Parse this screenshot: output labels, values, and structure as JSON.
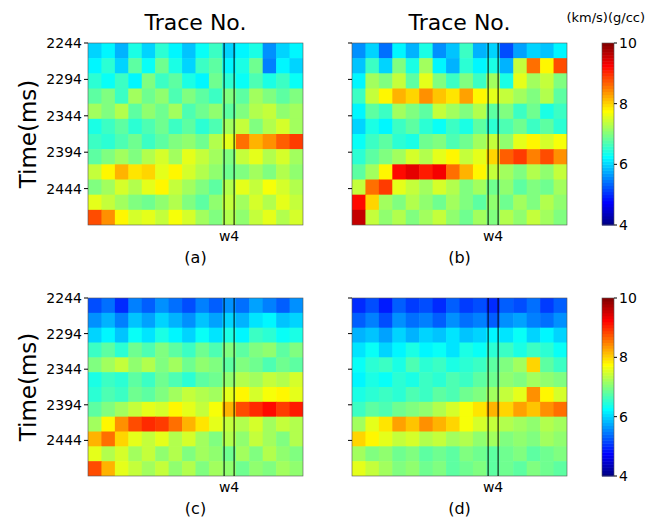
{
  "chart_data": [
    {
      "type": "heatmap",
      "label": "(a)",
      "title": "Trace No.",
      "y_label": "Time(ms)",
      "xlim": [
        0,
        16
      ],
      "xticks": [
        {
          "value": 10.5,
          "label": "w4"
        }
      ],
      "ylim": [
        2244,
        2494
      ],
      "yticks": [
        2244,
        2294,
        2344,
        2394,
        2444
      ],
      "cells": [
        [
          6.0,
          6.2,
          5.8,
          6.4,
          6.0,
          6.5,
          6.2,
          5.9,
          6.3,
          6.6,
          6.0,
          6.2,
          6.4,
          5.6,
          6.0,
          6.2
        ],
        [
          6.2,
          6.5,
          6.0,
          6.8,
          6.3,
          6.9,
          6.4,
          6.0,
          6.6,
          6.8,
          6.2,
          6.4,
          6.9,
          5.5,
          6.2,
          6.0
        ],
        [
          6.5,
          6.3,
          6.6,
          6.2,
          7.0,
          6.6,
          6.8,
          6.4,
          6.2,
          6.9,
          6.5,
          6.3,
          6.7,
          6.4,
          6.6,
          6.3
        ],
        [
          6.8,
          7.0,
          6.6,
          7.2,
          6.9,
          7.1,
          6.7,
          7.0,
          6.8,
          6.6,
          7.0,
          6.8,
          7.2,
          7.0,
          6.8,
          7.0
        ],
        [
          7.2,
          7.0,
          7.3,
          6.8,
          7.1,
          6.9,
          7.2,
          6.7,
          6.9,
          7.1,
          6.8,
          7.0,
          7.3,
          7.4,
          7.1,
          7.2
        ],
        [
          6.4,
          6.6,
          6.8,
          6.5,
          6.7,
          6.9,
          6.6,
          6.8,
          6.5,
          6.7,
          7.2,
          7.4,
          7.0,
          7.3,
          7.5,
          7.2
        ],
        [
          6.6,
          6.5,
          6.7,
          6.9,
          6.6,
          6.8,
          7.0,
          7.1,
          6.9,
          7.3,
          7.6,
          8.6,
          8.2,
          8.4,
          8.7,
          8.9
        ],
        [
          6.8,
          7.0,
          7.2,
          7.0,
          7.3,
          7.5,
          7.2,
          7.6,
          7.4,
          7.2,
          7.0,
          7.4,
          7.6,
          7.3,
          7.5,
          7.2
        ],
        [
          7.4,
          7.8,
          8.2,
          7.9,
          8.0,
          7.6,
          7.8,
          7.5,
          7.3,
          7.1,
          6.9,
          7.0,
          7.2,
          7.0,
          7.3,
          7.1
        ],
        [
          7.0,
          7.2,
          7.5,
          7.3,
          7.6,
          7.8,
          7.4,
          7.2,
          7.0,
          6.8,
          7.3,
          7.6,
          7.4,
          7.7,
          7.5,
          7.3
        ],
        [
          7.6,
          7.4,
          7.2,
          7.0,
          6.9,
          7.1,
          7.3,
          7.0,
          6.8,
          7.1,
          7.4,
          7.2,
          7.5,
          7.3,
          7.6,
          7.4
        ],
        [
          8.8,
          8.4,
          7.8,
          7.5,
          7.6,
          7.4,
          7.7,
          7.5,
          7.2,
          7.0,
          7.3,
          7.1,
          7.4,
          7.6,
          7.3,
          7.5
        ]
      ]
    },
    {
      "type": "heatmap",
      "label": "(b)",
      "title": "Trace No.",
      "tick_labels": "x",
      "xlim": [
        0,
        16
      ],
      "xticks": [
        {
          "value": 10.5,
          "label": "w4"
        }
      ],
      "ylim": [
        2244,
        2494
      ],
      "yticks": [
        2244,
        2294,
        2344,
        2394,
        2444
      ],
      "color_range": [
        4,
        10
      ],
      "color_ticks": [
        4,
        6,
        8,
        10
      ],
      "colorbar_label": "(km/s)(g/cc)",
      "cells": [
        [
          5.6,
          6.0,
          5.4,
          6.2,
          5.8,
          6.4,
          5.6,
          5.9,
          6.6,
          5.8,
          6.0,
          5.2,
          5.7,
          6.0,
          5.9,
          6.2
        ],
        [
          5.9,
          6.6,
          6.0,
          7.0,
          6.4,
          7.2,
          6.2,
          5.8,
          6.5,
          6.2,
          6.4,
          5.8,
          7.4,
          8.6,
          7.8,
          8.8
        ],
        [
          6.2,
          7.2,
          7.0,
          7.4,
          6.8,
          7.6,
          7.0,
          6.6,
          7.0,
          6.6,
          7.2,
          6.4,
          7.6,
          7.2,
          7.4,
          7.0
        ],
        [
          6.6,
          7.4,
          7.8,
          8.2,
          8.0,
          8.4,
          8.1,
          7.9,
          8.3,
          7.8,
          7.6,
          7.4,
          7.2,
          7.0,
          7.3,
          6.8
        ],
        [
          6.2,
          6.8,
          6.6,
          7.2,
          7.0,
          6.8,
          7.4,
          7.2,
          7.0,
          7.3,
          6.8,
          7.0,
          6.6,
          6.9,
          6.4,
          6.6
        ],
        [
          6.0,
          6.4,
          6.2,
          6.6,
          6.8,
          6.5,
          6.3,
          6.6,
          6.4,
          6.8,
          6.5,
          6.7,
          6.9,
          6.6,
          6.8,
          6.5
        ],
        [
          6.3,
          6.6,
          6.8,
          6.5,
          6.4,
          6.9,
          7.0,
          6.7,
          6.9,
          7.2,
          7.4,
          7.1,
          7.6,
          7.8,
          7.5,
          7.7
        ],
        [
          6.5,
          6.8,
          7.0,
          7.2,
          7.5,
          7.3,
          7.6,
          7.8,
          7.4,
          7.6,
          8.0,
          8.7,
          8.9,
          8.5,
          8.8,
          8.4
        ],
        [
          6.8,
          7.2,
          7.8,
          9.2,
          9.4,
          9.1,
          9.3,
          8.6,
          8.2,
          7.8,
          7.4,
          7.2,
          7.0,
          7.3,
          7.1,
          7.4
        ],
        [
          7.4,
          8.6,
          8.9,
          7.6,
          7.4,
          7.2,
          7.5,
          7.3,
          7.0,
          7.2,
          6.9,
          7.1,
          6.8,
          7.0,
          6.9,
          7.2
        ],
        [
          9.2,
          8.0,
          7.2,
          7.0,
          7.3,
          7.1,
          6.9,
          7.2,
          7.0,
          6.8,
          7.1,
          6.9,
          7.2,
          7.0,
          7.3,
          7.1
        ],
        [
          9.6,
          7.4,
          7.1,
          7.3,
          7.0,
          7.2,
          7.4,
          7.1,
          6.9,
          7.2,
          7.0,
          7.3,
          7.1,
          7.4,
          7.2,
          7.0
        ]
      ]
    },
    {
      "type": "heatmap",
      "label": "(c)",
      "y_label": "Time(ms)",
      "xlim": [
        0,
        16
      ],
      "xticks": [
        {
          "value": 10.5,
          "label": "w4"
        }
      ],
      "ylim": [
        2244,
        2494
      ],
      "yticks": [
        2244,
        2294,
        2344,
        2394,
        2444
      ],
      "cells": [
        [
          5.2,
          5.4,
          5.0,
          5.5,
          5.3,
          5.6,
          5.4,
          5.2,
          5.5,
          5.3,
          5.6,
          5.4,
          5.7,
          5.5,
          5.3,
          5.6
        ],
        [
          5.6,
          5.8,
          5.5,
          5.9,
          5.7,
          6.0,
          5.8,
          5.6,
          5.9,
          5.7,
          6.0,
          5.8,
          6.1,
          6.2,
          5.9,
          6.0
        ],
        [
          6.0,
          6.2,
          5.9,
          6.3,
          6.1,
          6.4,
          6.2,
          6.0,
          6.3,
          6.1,
          6.4,
          6.2,
          6.6,
          6.5,
          6.3,
          6.4
        ],
        [
          6.6,
          6.8,
          6.5,
          6.9,
          6.7,
          7.0,
          6.8,
          6.6,
          6.9,
          6.7,
          7.0,
          6.8,
          7.0,
          7.1,
          6.8,
          7.0
        ],
        [
          7.0,
          7.2,
          7.4,
          7.1,
          7.3,
          7.0,
          7.2,
          6.9,
          7.1,
          7.0,
          6.8,
          7.0,
          6.9,
          6.7,
          6.9,
          6.8
        ],
        [
          6.4,
          6.6,
          6.5,
          6.8,
          6.6,
          6.9,
          6.7,
          6.5,
          6.8,
          6.9,
          7.1,
          7.3,
          7.2,
          7.4,
          7.3,
          7.5
        ],
        [
          6.5,
          6.7,
          6.6,
          6.9,
          6.8,
          7.0,
          7.2,
          7.4,
          7.3,
          7.2,
          7.6,
          7.8,
          7.5,
          7.7,
          7.8,
          7.6
        ],
        [
          6.8,
          7.0,
          7.2,
          7.4,
          7.6,
          7.5,
          7.8,
          7.6,
          7.4,
          7.7,
          8.2,
          8.8,
          9.0,
          9.2,
          8.9,
          9.1
        ],
        [
          7.2,
          7.8,
          8.4,
          8.8,
          9.0,
          8.9,
          8.6,
          8.2,
          7.9,
          7.6,
          7.4,
          7.3,
          7.5,
          7.2,
          7.4,
          7.3
        ],
        [
          8.2,
          8.6,
          8.0,
          7.6,
          7.4,
          7.6,
          7.3,
          7.5,
          7.2,
          7.0,
          7.3,
          7.1,
          7.4,
          7.2,
          7.0,
          7.3
        ],
        [
          7.6,
          7.3,
          7.5,
          7.2,
          7.4,
          7.1,
          7.3,
          7.0,
          7.2,
          7.1,
          6.9,
          7.2,
          7.0,
          7.3,
          7.1,
          7.0
        ],
        [
          8.8,
          8.2,
          7.6,
          7.4,
          7.2,
          7.4,
          7.1,
          7.3,
          7.0,
          7.2,
          7.1,
          6.9,
          7.1,
          7.0,
          7.2,
          7.1
        ]
      ]
    },
    {
      "type": "heatmap",
      "label": "(d)",
      "tick_labels": "x",
      "xlim": [
        0,
        16
      ],
      "xticks": [
        {
          "value": 10.5,
          "label": "w4"
        }
      ],
      "ylim": [
        2244,
        2494
      ],
      "yticks": [
        2244,
        2294,
        2344,
        2394,
        2444
      ],
      "color_range": [
        4,
        10
      ],
      "color_ticks": [
        4,
        6,
        8,
        10
      ],
      "cells": [
        [
          5.0,
          5.2,
          4.9,
          5.3,
          5.1,
          5.2,
          5.0,
          5.3,
          5.1,
          5.2,
          5.0,
          5.3,
          5.2,
          5.4,
          5.1,
          5.3
        ],
        [
          5.3,
          5.5,
          5.2,
          5.6,
          5.4,
          5.5,
          5.3,
          5.6,
          5.4,
          5.5,
          5.3,
          5.6,
          5.7,
          5.5,
          5.4,
          5.6
        ],
        [
          5.8,
          5.9,
          5.7,
          6.0,
          5.8,
          6.0,
          5.9,
          6.1,
          5.9,
          6.0,
          6.2,
          6.1,
          6.3,
          6.0,
          6.2,
          6.0
        ],
        [
          6.1,
          6.3,
          6.0,
          6.2,
          6.4,
          6.2,
          6.3,
          6.1,
          6.4,
          6.3,
          6.5,
          6.6,
          6.4,
          6.6,
          6.5,
          6.3
        ],
        [
          6.3,
          6.5,
          6.6,
          6.4,
          6.7,
          6.5,
          6.6,
          6.4,
          6.5,
          6.6,
          6.8,
          7.0,
          7.2,
          8.0,
          6.8,
          6.6
        ],
        [
          6.2,
          6.4,
          6.3,
          6.5,
          6.4,
          6.6,
          6.5,
          6.7,
          6.6,
          6.8,
          6.9,
          7.1,
          7.0,
          7.2,
          7.1,
          7.0
        ],
        [
          6.4,
          6.5,
          6.6,
          6.5,
          6.7,
          6.6,
          6.8,
          6.7,
          6.9,
          7.0,
          7.2,
          7.4,
          7.6,
          8.4,
          7.8,
          7.5
        ],
        [
          6.6,
          6.8,
          6.7,
          6.9,
          7.0,
          7.1,
          7.3,
          7.5,
          7.7,
          7.9,
          8.2,
          8.0,
          8.3,
          8.1,
          8.4,
          8.6
        ],
        [
          7.2,
          7.6,
          7.9,
          8.3,
          8.1,
          8.4,
          8.2,
          8.0,
          7.7,
          7.5,
          7.4,
          7.3,
          7.2,
          7.1,
          7.3,
          7.2
        ],
        [
          8.0,
          7.8,
          7.6,
          7.4,
          7.5,
          7.3,
          7.4,
          7.2,
          7.3,
          7.1,
          7.2,
          7.0,
          7.1,
          7.0,
          7.2,
          7.1
        ],
        [
          7.2,
          7.0,
          7.1,
          6.9,
          7.0,
          6.8,
          6.9,
          6.8,
          7.0,
          6.9,
          6.8,
          6.9,
          7.0,
          6.8,
          6.9,
          7.0
        ],
        [
          7.6,
          7.4,
          7.2,
          7.0,
          7.1,
          6.9,
          7.0,
          6.8,
          6.9,
          7.0,
          6.8,
          6.9,
          6.8,
          7.0,
          6.9,
          6.8
        ]
      ]
    }
  ]
}
